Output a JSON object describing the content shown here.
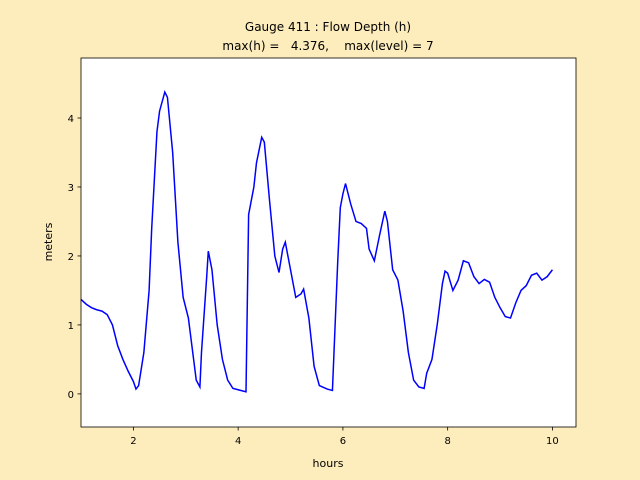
{
  "chart_data": {
    "type": "line",
    "title": "Gauge 411 : Flow Depth (h)",
    "subtitle": "max(h) =   4.376,    max(level) = 7",
    "x_label": "hours",
    "y_label": "meters",
    "xlim": [
      1.0,
      10.45
    ],
    "ylim": [
      -0.48,
      4.87
    ],
    "xticks": [
      2,
      4,
      6,
      8,
      10
    ],
    "yticks": [
      0,
      1,
      2,
      3,
      4
    ],
    "series": [
      {
        "name": "h",
        "color": "#0000ff",
        "x": [
          1.0,
          1.1,
          1.2,
          1.3,
          1.4,
          1.5,
          1.6,
          1.7,
          1.8,
          1.9,
          2.0,
          2.05,
          2.1,
          2.2,
          2.3,
          2.35,
          2.45,
          2.5,
          2.6,
          2.65,
          2.75,
          2.85,
          2.95,
          3.05,
          3.15,
          3.2,
          3.27,
          3.3,
          3.4,
          3.43,
          3.5,
          3.6,
          3.7,
          3.8,
          3.9,
          4.0,
          4.1,
          4.15,
          4.2,
          4.3,
          4.35,
          4.45,
          4.5,
          4.6,
          4.7,
          4.78,
          4.85,
          4.9,
          5.0,
          5.1,
          5.2,
          5.25,
          5.35,
          5.45,
          5.55,
          5.7,
          5.8,
          5.9,
          5.95,
          6.0,
          6.05,
          6.15,
          6.25,
          6.35,
          6.45,
          6.5,
          6.6,
          6.7,
          6.8,
          6.85,
          6.95,
          7.05,
          7.15,
          7.25,
          7.35,
          7.45,
          7.55,
          7.6,
          7.7,
          7.8,
          7.9,
          7.95,
          8.0,
          8.1,
          8.2,
          8.3,
          8.4,
          8.5,
          8.6,
          8.7,
          8.8,
          8.9,
          9.0,
          9.1,
          9.2,
          9.3,
          9.4,
          9.5,
          9.6,
          9.7,
          9.8,
          9.9,
          10.0
        ],
        "values": [
          1.37,
          1.3,
          1.25,
          1.22,
          1.2,
          1.15,
          1.0,
          0.7,
          0.5,
          0.33,
          0.18,
          0.07,
          0.12,
          0.6,
          1.5,
          2.4,
          3.8,
          4.1,
          4.376,
          4.3,
          3.5,
          2.2,
          1.4,
          1.1,
          0.5,
          0.2,
          0.1,
          0.6,
          1.7,
          2.07,
          1.8,
          1.0,
          0.5,
          0.2,
          0.08,
          0.06,
          0.04,
          0.03,
          2.6,
          3.0,
          3.35,
          3.72,
          3.65,
          2.8,
          2.0,
          1.76,
          2.1,
          2.2,
          1.8,
          1.4,
          1.45,
          1.52,
          1.1,
          0.4,
          0.12,
          0.07,
          0.05,
          1.9,
          2.7,
          2.9,
          3.05,
          2.75,
          2.5,
          2.47,
          2.4,
          2.1,
          1.93,
          2.3,
          2.65,
          2.5,
          1.8,
          1.65,
          1.2,
          0.6,
          0.2,
          0.1,
          0.08,
          0.3,
          0.5,
          1.0,
          1.6,
          1.78,
          1.75,
          1.5,
          1.65,
          1.93,
          1.9,
          1.7,
          1.6,
          1.66,
          1.62,
          1.4,
          1.25,
          1.12,
          1.1,
          1.32,
          1.5,
          1.57,
          1.72,
          1.75,
          1.65,
          1.7,
          1.8
        ]
      }
    ]
  }
}
